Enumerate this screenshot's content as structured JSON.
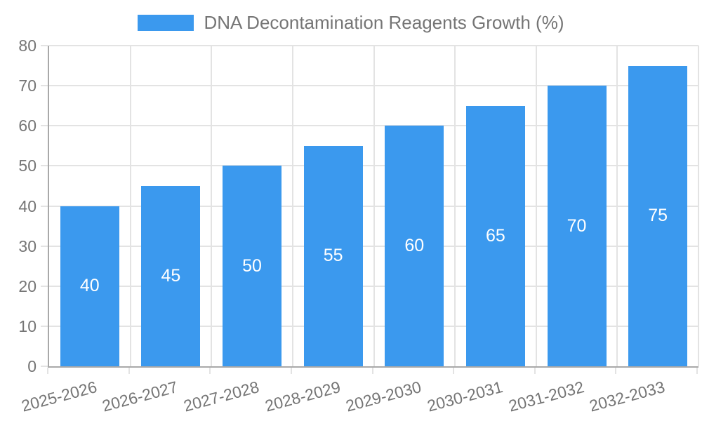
{
  "legend": {
    "label": "DNA Decontamination Reagents Growth (%)"
  },
  "colors": {
    "bar": "#3B99EE",
    "text": "#757575",
    "grid": "#E3E3E3",
    "axis": "#A9A9A9",
    "value_label": "#FFFFFF",
    "background": "#FFFFFF"
  },
  "chart_data": {
    "type": "bar",
    "title": "DNA Decontamination Reagents Growth (%)",
    "categories": [
      "2025-2026",
      "2026-2027",
      "2027-2028",
      "2028-2029",
      "2029-2030",
      "2030-2031",
      "2031-2032",
      "2032-2033"
    ],
    "values": [
      40,
      45,
      50,
      55,
      60,
      65,
      70,
      75
    ],
    "bar_value_labels": [
      "40",
      "45",
      "50",
      "55",
      "60",
      "65",
      "70",
      "75"
    ],
    "xlabel": "",
    "ylabel": "",
    "ylim": [
      0,
      80
    ],
    "yticks": [
      0,
      10,
      20,
      30,
      40,
      50,
      60,
      70,
      80
    ],
    "grid": true,
    "legend_position": "top-center",
    "bar_labels_inside": "centered"
  }
}
